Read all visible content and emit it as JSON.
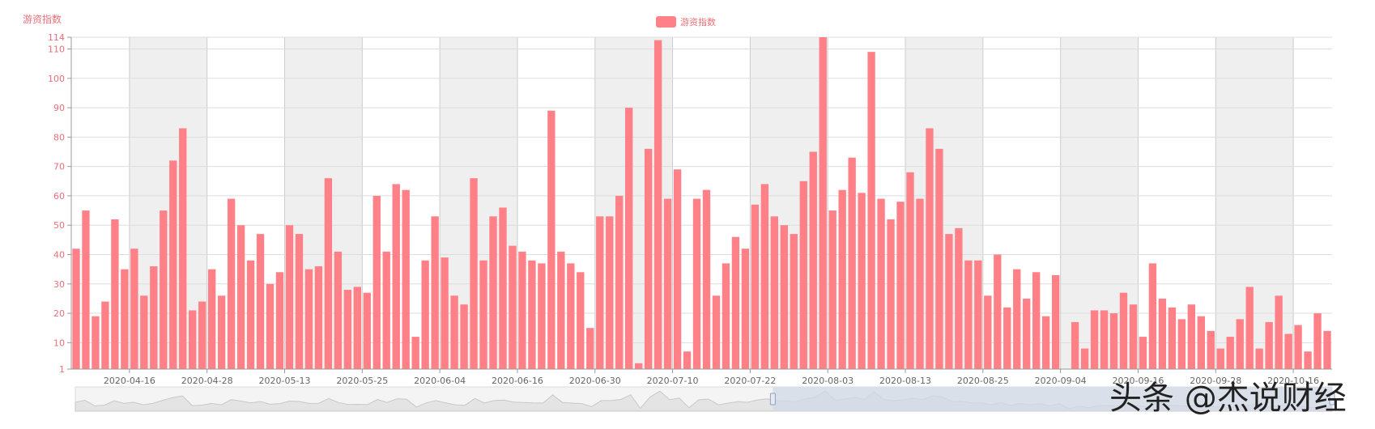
{
  "chart_data": {
    "type": "bar",
    "title": "游资指数",
    "legend": {
      "label": "游资指数",
      "placement": "top-center"
    },
    "colors": {
      "bar": "#ff8087",
      "band": "#efefef",
      "grid": "#dddddd",
      "axis_text": "#e8707a",
      "slider_bg": "#f4f4f4",
      "slider_sel": "#d2d9e6"
    },
    "ylim": [
      1,
      114
    ],
    "yticks": [
      1,
      10,
      20,
      30,
      40,
      50,
      60,
      70,
      80,
      90,
      100,
      110,
      114
    ],
    "xlabel": "",
    "ylabel": "",
    "x_tick_labels": [
      {
        "label": "2020-04-16",
        "index": 6
      },
      {
        "label": "2020-04-28",
        "index": 14
      },
      {
        "label": "2020-05-13",
        "index": 22
      },
      {
        "label": "2020-05-25",
        "index": 30
      },
      {
        "label": "2020-06-04",
        "index": 38
      },
      {
        "label": "2020-06-16",
        "index": 46
      },
      {
        "label": "2020-06-30",
        "index": 54
      },
      {
        "label": "2020-07-10",
        "index": 62
      },
      {
        "label": "2020-07-22",
        "index": 70
      },
      {
        "label": "2020-08-03",
        "index": 78
      },
      {
        "label": "2020-08-13",
        "index": 86
      },
      {
        "label": "2020-08-25",
        "index": 94
      },
      {
        "label": "2020-09-04",
        "index": 102
      },
      {
        "label": "2020-09-16",
        "index": 110
      },
      {
        "label": "2020-09-28",
        "index": 118
      },
      {
        "label": "2020-10-16",
        "index": 126
      }
    ],
    "values": [
      42,
      55,
      19,
      24,
      52,
      35,
      42,
      26,
      36,
      55,
      72,
      83,
      21,
      24,
      35,
      26,
      59,
      50,
      38,
      47,
      30,
      34,
      50,
      47,
      35,
      36,
      66,
      41,
      28,
      29,
      27,
      60,
      41,
      64,
      62,
      12,
      38,
      53,
      39,
      26,
      23,
      66,
      38,
      53,
      56,
      43,
      41,
      38,
      37,
      89,
      41,
      37,
      34,
      15,
      53,
      53,
      60,
      90,
      3,
      76,
      113,
      59,
      69,
      7,
      59,
      62,
      26,
      37,
      46,
      42,
      57,
      64,
      53,
      50,
      47,
      65,
      75,
      114,
      55,
      62,
      73,
      61,
      109,
      59,
      52,
      58,
      68,
      59,
      83,
      76,
      47,
      49,
      38,
      38,
      26,
      40,
      22,
      35,
      25,
      34,
      19,
      33,
      1,
      17,
      8,
      21,
      21,
      20,
      27,
      23,
      12,
      37,
      25,
      22,
      18,
      23,
      19,
      14,
      8,
      12,
      18,
      29,
      8,
      17,
      26,
      13,
      16,
      7,
      20,
      14
    ]
  },
  "slider": {
    "selection_start_fraction": 0.555,
    "selection_end_fraction": 1.0
  },
  "watermark": "头条 @杰说财经"
}
